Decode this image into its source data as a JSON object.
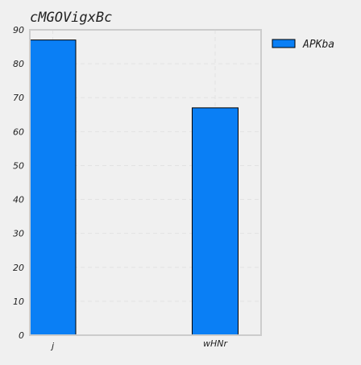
{
  "chart_data": {
    "type": "bar",
    "title": "cMGOVigxBc",
    "categories": [
      "j",
      "wHNr"
    ],
    "series": [
      {
        "name": "APKba",
        "values": [
          87,
          67
        ],
        "color": "#0a7ff5"
      }
    ],
    "ylim": [
      0,
      90
    ],
    "yticks": [
      0,
      10,
      20,
      30,
      40,
      50,
      60,
      70,
      80,
      90
    ],
    "xlabel": "",
    "ylabel": "",
    "grid": true,
    "legend_position": "top-right-outside",
    "colors": {
      "background": "#f0f0f0",
      "plot_background": "#f0f0f0",
      "axes_edge": "#cccccc",
      "grid": "#e2e2e2",
      "bar_edge": "#000000"
    }
  }
}
